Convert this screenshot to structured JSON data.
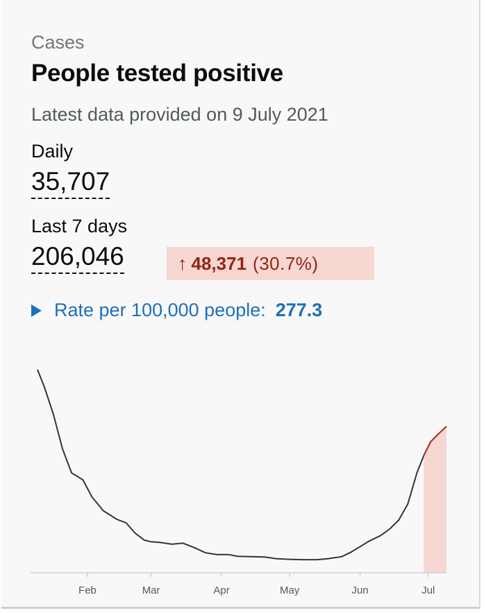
{
  "card": {
    "caption": "Cases",
    "title": "People tested positive",
    "updated": "Latest data provided on 9 July 2021",
    "daily": {
      "label": "Daily",
      "value": "35,707"
    },
    "last7": {
      "label": "Last 7 days",
      "value": "206,046"
    },
    "change": {
      "arrow": "↑",
      "absolute": "48,371",
      "percent": "(30.7%)",
      "color": "#942514",
      "background": "#f6d7d2"
    },
    "rate": {
      "label": "Rate per 100,000 people:",
      "value": "277.3",
      "icon": "triangle-right-icon"
    }
  },
  "chart_data": {
    "type": "line",
    "title": "",
    "xlabel": "",
    "ylabel": "",
    "grid": false,
    "x_ticks": [
      "Feb",
      "Mar",
      "Apr",
      "May",
      "Jun",
      "Jul"
    ],
    "tick_dates": [
      "2021-02-01",
      "2021-03-01",
      "2021-04-01",
      "2021-05-01",
      "2021-06-01",
      "2021-07-01"
    ],
    "x_range": [
      "2021-01-10",
      "2021-07-09"
    ],
    "ylim": [
      0,
      60000
    ],
    "line_color": "#333333",
    "highlight": {
      "from": "2021-06-27",
      "to": "2021-07-09",
      "line_color": "#b5311d",
      "fill": "#f6d7d2"
    },
    "x": [
      "2021-01-10",
      "2021-01-13",
      "2021-01-17",
      "2021-01-21",
      "2021-01-25",
      "2021-01-30",
      "2021-02-03",
      "2021-02-08",
      "2021-02-14",
      "2021-02-18",
      "2021-02-22",
      "2021-02-26",
      "2021-03-01",
      "2021-03-05",
      "2021-03-10",
      "2021-03-15",
      "2021-03-20",
      "2021-03-25",
      "2021-03-30",
      "2021-04-04",
      "2021-04-08",
      "2021-04-14",
      "2021-04-20",
      "2021-04-25",
      "2021-05-01",
      "2021-05-07",
      "2021-05-13",
      "2021-05-18",
      "2021-05-24",
      "2021-05-28",
      "2021-06-01",
      "2021-06-05",
      "2021-06-10",
      "2021-06-14",
      "2021-06-18",
      "2021-06-22",
      "2021-06-26",
      "2021-06-29",
      "2021-07-02",
      "2021-07-05",
      "2021-07-09"
    ],
    "y": [
      59000,
      54000,
      46000,
      36000,
      29000,
      27000,
      22000,
      18000,
      15500,
      14500,
      11500,
      9500,
      9000,
      8800,
      8300,
      8600,
      7300,
      5800,
      5300,
      5300,
      4800,
      4700,
      4600,
      4100,
      3900,
      3800,
      3800,
      4100,
      4700,
      6000,
      7600,
      9200,
      10800,
      12700,
      15300,
      20000,
      29000,
      34000,
      38000,
      40000,
      42500
    ]
  }
}
